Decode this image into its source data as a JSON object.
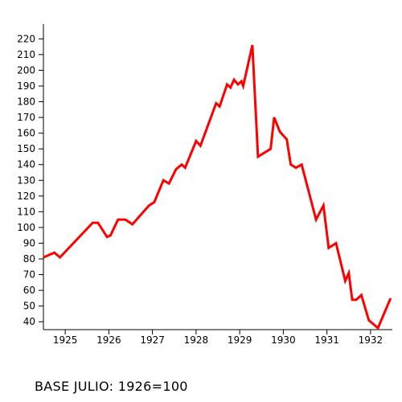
{
  "chart_data": {
    "type": "line",
    "title": "",
    "xlabel": "",
    "ylabel": "",
    "ylim": [
      35,
      225
    ],
    "xlim": [
      1924.5,
      1932.5
    ],
    "y_ticks": [
      40,
      50,
      60,
      70,
      80,
      90,
      100,
      110,
      120,
      130,
      140,
      150,
      160,
      170,
      180,
      190,
      200,
      210,
      220
    ],
    "x_tick_labels": [
      "1925",
      "1926",
      "1927",
      "1928",
      "1929",
      "1930",
      "1931",
      "1932"
    ],
    "grid": false,
    "legend": "none",
    "series": [
      {
        "color": "#ff0000",
        "x": [
          1924.5,
          1924.75,
          1924.88,
          1925.63,
          1925.75,
          1925.96,
          1926.04,
          1926.21,
          1926.38,
          1926.54,
          1926.92,
          1927.04,
          1927.25,
          1927.38,
          1927.54,
          1927.67,
          1927.75,
          1928.0,
          1928.1,
          1928.46,
          1928.54,
          1928.71,
          1928.79,
          1928.87,
          1928.96,
          1929.04,
          1929.08,
          1929.29,
          1929.42,
          1929.71,
          1929.79,
          1929.92,
          1930.08,
          1930.17,
          1930.29,
          1930.42,
          1930.75,
          1930.92,
          1931.04,
          1931.21,
          1931.42,
          1931.5,
          1931.58,
          1931.67,
          1931.79,
          1931.96,
          1932.17,
          1932.46
        ],
        "values": [
          81,
          84,
          81,
          103,
          103,
          94,
          95,
          105,
          105,
          102,
          114,
          116,
          130,
          128,
          137,
          140,
          138,
          155,
          152,
          179,
          177,
          191,
          189,
          194,
          191,
          193,
          190,
          216,
          145,
          150,
          170,
          161,
          156,
          140,
          138,
          140,
          105,
          114,
          87,
          90,
          66,
          71,
          54,
          54,
          57,
          41,
          36,
          55
        ]
      }
    ]
  },
  "caption": "BASE JULIO: 1926=100",
  "colors": {
    "line": "#ff0000",
    "axis": "#000000",
    "background": "#ffffff"
  }
}
